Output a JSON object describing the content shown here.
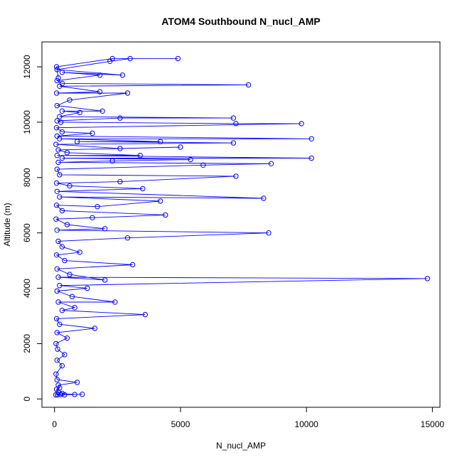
{
  "chart_data": {
    "type": "line",
    "title": "ATOM4 Southbound N_nucl_AMP",
    "xlabel": "N_nucl_AMP",
    "ylabel": "Altitude (m)",
    "xlim": [
      -500,
      15300
    ],
    "ylim": [
      -300,
      12900
    ],
    "x_ticks": [
      0,
      5000,
      10000,
      15000
    ],
    "x_tick_labels": [
      "0",
      "5000",
      "10000",
      "15000"
    ],
    "y_ticks": [
      0,
      2000,
      4000,
      6000,
      8000,
      10000,
      12000
    ],
    "y_tick_labels": [
      "0",
      "2000",
      "4000",
      "6000",
      "8000",
      "10000",
      "12000"
    ],
    "grid": false,
    "marker": "open-circle",
    "series": [
      {
        "color": "#0000ff",
        "points": [
          [
            50,
            150
          ],
          [
            120,
            150
          ],
          [
            250,
            160
          ],
          [
            400,
            150
          ],
          [
            1100,
            170
          ],
          [
            800,
            160
          ],
          [
            300,
            200
          ],
          [
            150,
            250
          ],
          [
            80,
            350
          ],
          [
            200,
            400
          ],
          [
            150,
            500
          ],
          [
            900,
            600
          ],
          [
            100,
            700
          ],
          [
            60,
            900
          ],
          [
            300,
            1200
          ],
          [
            100,
            1400
          ],
          [
            400,
            1600
          ],
          [
            120,
            1800
          ],
          [
            60,
            2000
          ],
          [
            500,
            2200
          ],
          [
            100,
            2400
          ],
          [
            1600,
            2550
          ],
          [
            200,
            2700
          ],
          [
            80,
            2900
          ],
          [
            3600,
            3050
          ],
          [
            300,
            3200
          ],
          [
            800,
            3300
          ],
          [
            150,
            3500
          ],
          [
            2400,
            3500
          ],
          [
            700,
            3700
          ],
          [
            100,
            3900
          ],
          [
            1300,
            4000
          ],
          [
            200,
            4100
          ],
          [
            14800,
            4350
          ],
          [
            150,
            4400
          ],
          [
            2000,
            4300
          ],
          [
            600,
            4500
          ],
          [
            100,
            4700
          ],
          [
            3100,
            4850
          ],
          [
            400,
            5000
          ],
          [
            80,
            5200
          ],
          [
            1000,
            5300
          ],
          [
            300,
            5500
          ],
          [
            150,
            5700
          ],
          [
            2900,
            5820
          ],
          [
            8500,
            6000
          ],
          [
            100,
            6100
          ],
          [
            2000,
            6150
          ],
          [
            500,
            6300
          ],
          [
            60,
            6500
          ],
          [
            1500,
            6550
          ],
          [
            4400,
            6650
          ],
          [
            300,
            6800
          ],
          [
            80,
            7000
          ],
          [
            1700,
            6950
          ],
          [
            4200,
            7150
          ],
          [
            200,
            7300
          ],
          [
            8300,
            7250
          ],
          [
            100,
            7500
          ],
          [
            3500,
            7600
          ],
          [
            600,
            7700
          ],
          [
            80,
            7800
          ],
          [
            2600,
            7850
          ],
          [
            7200,
            8050
          ],
          [
            200,
            8100
          ],
          [
            100,
            8300
          ],
          [
            5900,
            8450
          ],
          [
            8600,
            8500
          ],
          [
            150,
            8550
          ],
          [
            2300,
            8600
          ],
          [
            5400,
            8650
          ],
          [
            300,
            8700
          ],
          [
            10200,
            8700
          ],
          [
            100,
            8800
          ],
          [
            3400,
            8800
          ],
          [
            500,
            8900
          ],
          [
            150,
            9000
          ],
          [
            5000,
            9100
          ],
          [
            2600,
            9050
          ],
          [
            60,
            9200
          ],
          [
            7100,
            9250
          ],
          [
            900,
            9300
          ],
          [
            4200,
            9300
          ],
          [
            200,
            9400
          ],
          [
            10200,
            9400
          ],
          [
            100,
            9500
          ],
          [
            1500,
            9600
          ],
          [
            300,
            9650
          ],
          [
            80,
            9800
          ],
          [
            9800,
            9950
          ],
          [
            7200,
            9950
          ],
          [
            250,
            10000
          ],
          [
            100,
            10050
          ],
          [
            2600,
            10150
          ],
          [
            7100,
            10150
          ],
          [
            200,
            10200
          ],
          [
            1000,
            10350
          ],
          [
            300,
            10400
          ],
          [
            1900,
            10400
          ],
          [
            100,
            10600
          ],
          [
            600,
            10800
          ],
          [
            2900,
            11050
          ],
          [
            80,
            11050
          ],
          [
            1800,
            11100
          ],
          [
            200,
            11300
          ],
          [
            7700,
            11350
          ],
          [
            300,
            11400
          ],
          [
            100,
            11500
          ],
          [
            1800,
            11700
          ],
          [
            300,
            11800
          ],
          [
            2700,
            11700
          ],
          [
            100,
            11900
          ],
          [
            2200,
            12200
          ],
          [
            3000,
            12300
          ],
          [
            4900,
            12300
          ],
          [
            2300,
            12300
          ],
          [
            80,
            12000
          ],
          [
            150,
            11600
          ]
        ]
      }
    ]
  }
}
